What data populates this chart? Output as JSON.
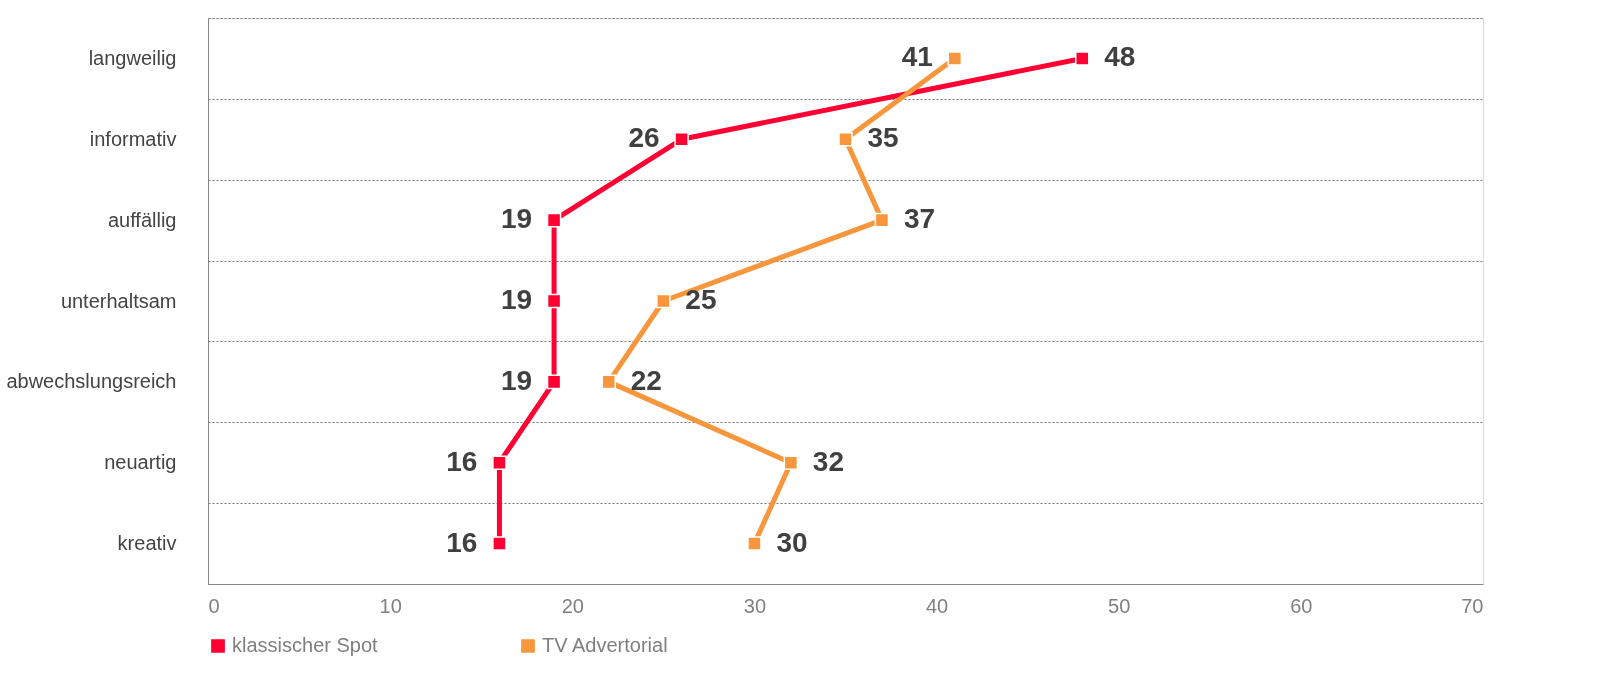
{
  "chart_data": {
    "type": "line",
    "orientation": "horizontal",
    "categories": [
      "langweilig",
      "informativ",
      "auffällig",
      "unterhaltsam",
      "abwechslungsreich",
      "neuartig",
      "kreativ"
    ],
    "series": [
      {
        "name": "klassischer Spot",
        "color": "#ff0033",
        "values": [
          48,
          26,
          19,
          19,
          19,
          16,
          16
        ]
      },
      {
        "name": "TV Advertorial",
        "color": "#f7963c",
        "values": [
          41,
          35,
          37,
          25,
          22,
          32,
          30
        ]
      }
    ],
    "xlim": [
      0,
      70
    ],
    "xticks": [
      0,
      10,
      20,
      30,
      40,
      50,
      60,
      70
    ],
    "grid": "y",
    "legend": "bottom",
    "marker": "square",
    "line_style": "solid",
    "data_labels": true
  }
}
